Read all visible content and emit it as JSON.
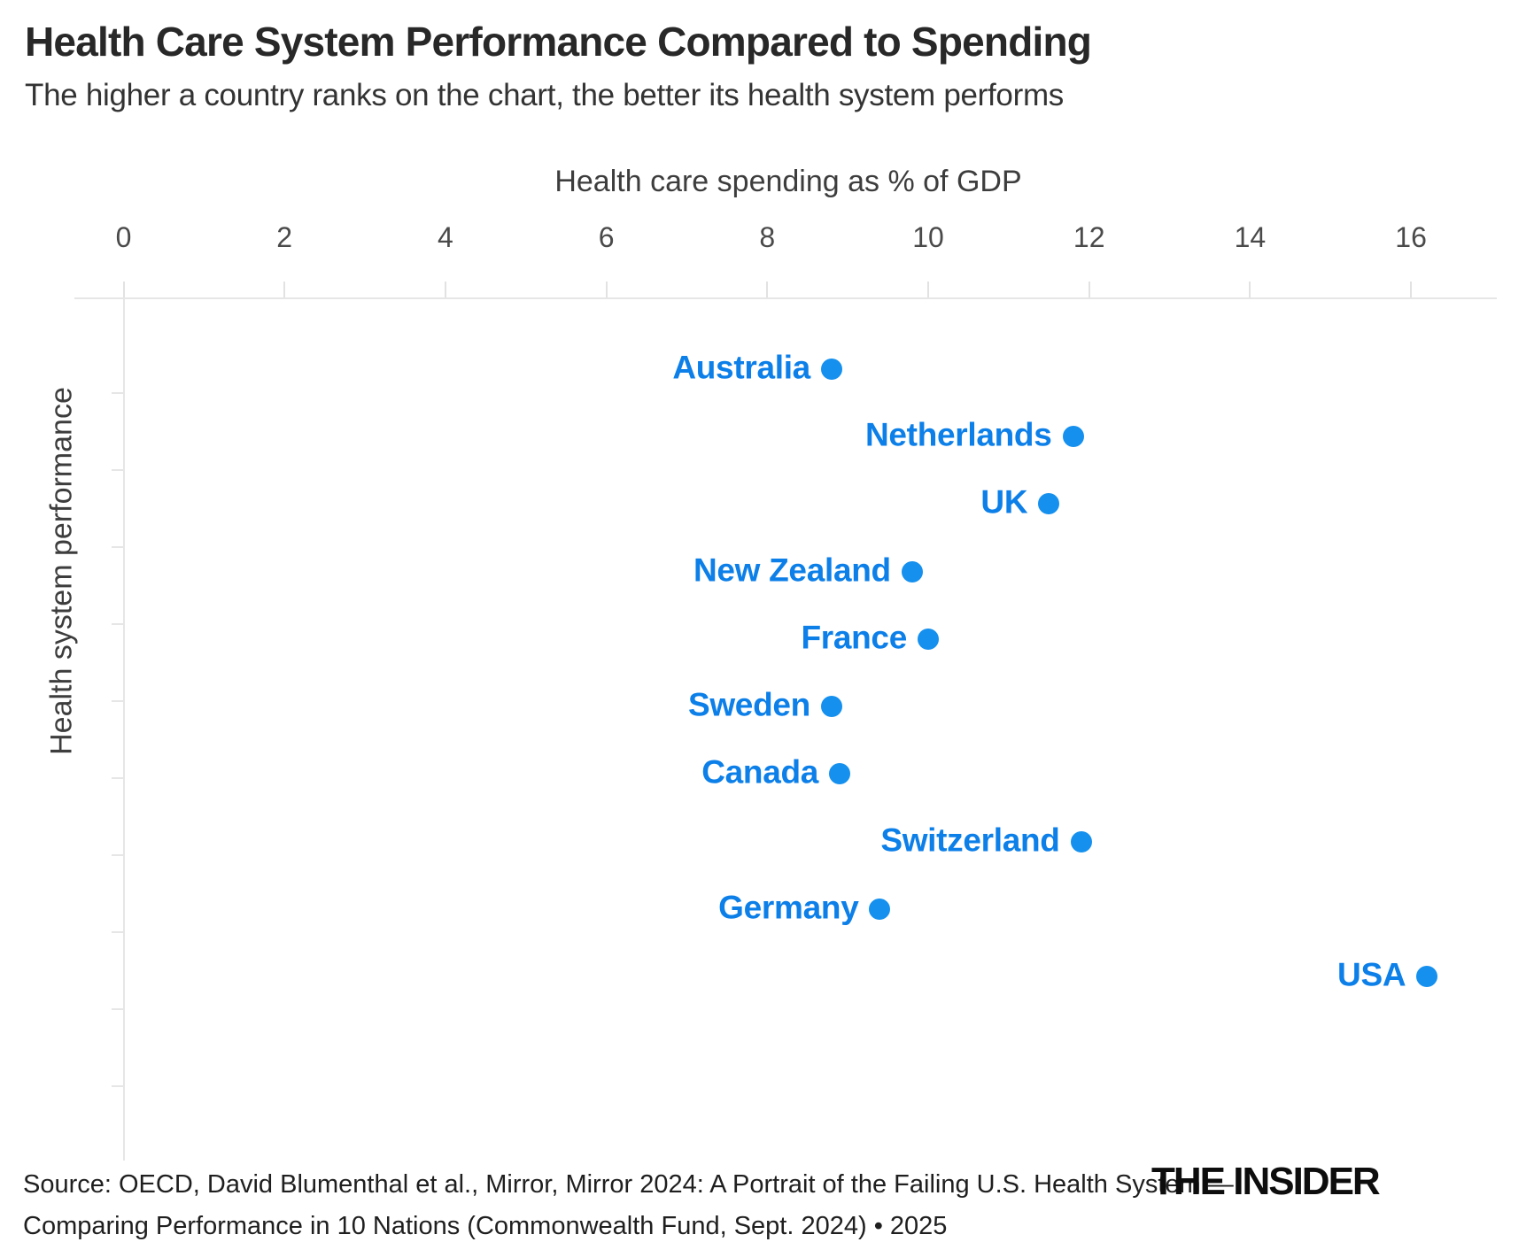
{
  "title": "Health Care System Performance Compared to Spending",
  "subtitle": "The higher a country ranks on the chart, the better its health system performs",
  "chart_data": {
    "type": "scatter",
    "title": "Health Care System Performance Compared to Spending",
    "subtitle": "The higher a country ranks on the chart, the better its health system performs",
    "xlabel": "Health care spending as % of GDP",
    "ylabel": "Health system performance",
    "x_ticks": [
      0,
      2,
      4,
      6,
      8,
      10,
      12,
      14,
      16
    ],
    "xlim": [
      0,
      17.1
    ],
    "y_axis_note": "ordinal rank, best performer at top, no numeric tick labels",
    "grid": "off",
    "legend": "none",
    "points": [
      {
        "country": "Australia",
        "performance_rank": 1,
        "spending_pct_gdp": 8.8
      },
      {
        "country": "Netherlands",
        "performance_rank": 2,
        "spending_pct_gdp": 11.8
      },
      {
        "country": "UK",
        "performance_rank": 3,
        "spending_pct_gdp": 11.5
      },
      {
        "country": "New Zealand",
        "performance_rank": 4,
        "spending_pct_gdp": 9.8
      },
      {
        "country": "France",
        "performance_rank": 5,
        "spending_pct_gdp": 10.0
      },
      {
        "country": "Sweden",
        "performance_rank": 6,
        "spending_pct_gdp": 8.8
      },
      {
        "country": "Canada",
        "performance_rank": 7,
        "spending_pct_gdp": 8.9
      },
      {
        "country": "Switzerland",
        "performance_rank": 8,
        "spending_pct_gdp": 11.9
      },
      {
        "country": "Germany",
        "performance_rank": 9,
        "spending_pct_gdp": 9.4
      },
      {
        "country": "USA",
        "performance_rank": 10,
        "spending_pct_gdp": 16.2
      }
    ]
  },
  "footer": {
    "source_line1": "Source: OECD, David Blumenthal et al., Mirror, Mirror 2024: A Portrait of the Failing U.S. Health System —",
    "source_line2": "Comparing Performance in 10 Nations (Commonwealth Fund, Sept. 2024) • 2025",
    "logo": "THE INSIDER"
  },
  "colors": {
    "dot_blue": "#1590ee",
    "label_blue": "#0c7fe8",
    "axis_line_gray": "#e6e6e6",
    "title_dark": "#282828",
    "axis_text_gray": "#4a4a4a"
  }
}
